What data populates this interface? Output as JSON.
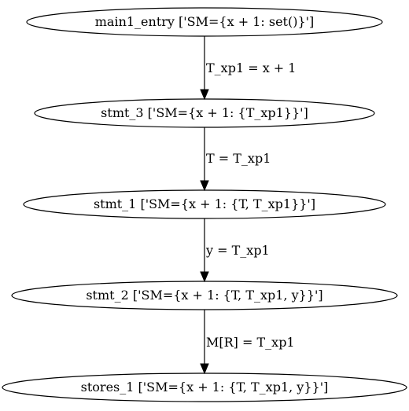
{
  "graph": {
    "nodes": [
      {
        "id": "main1_entry",
        "label": "main1_entry ['SM={x + 1: set()}']"
      },
      {
        "id": "stmt_3",
        "label": "stmt_3 ['SM={x + 1: {T_xp1}}']"
      },
      {
        "id": "stmt_1",
        "label": "stmt_1 ['SM={x + 1: {T, T_xp1}}']"
      },
      {
        "id": "stmt_2",
        "label": "stmt_2 ['SM={x + 1: {T, T_xp1, y}}']"
      },
      {
        "id": "stores_1",
        "label": "stores_1 ['SM={x + 1: {T, T_xp1, y}}']"
      }
    ],
    "edges": [
      {
        "from": "main1_entry",
        "to": "stmt_3",
        "label": "T_xp1 = x + 1"
      },
      {
        "from": "stmt_3",
        "to": "stmt_1",
        "label": "T = T_xp1"
      },
      {
        "from": "stmt_1",
        "to": "stmt_2",
        "label": "y = T_xp1"
      },
      {
        "from": "stmt_2",
        "to": "stores_1",
        "label": "M[R] = T_xp1"
      }
    ]
  }
}
